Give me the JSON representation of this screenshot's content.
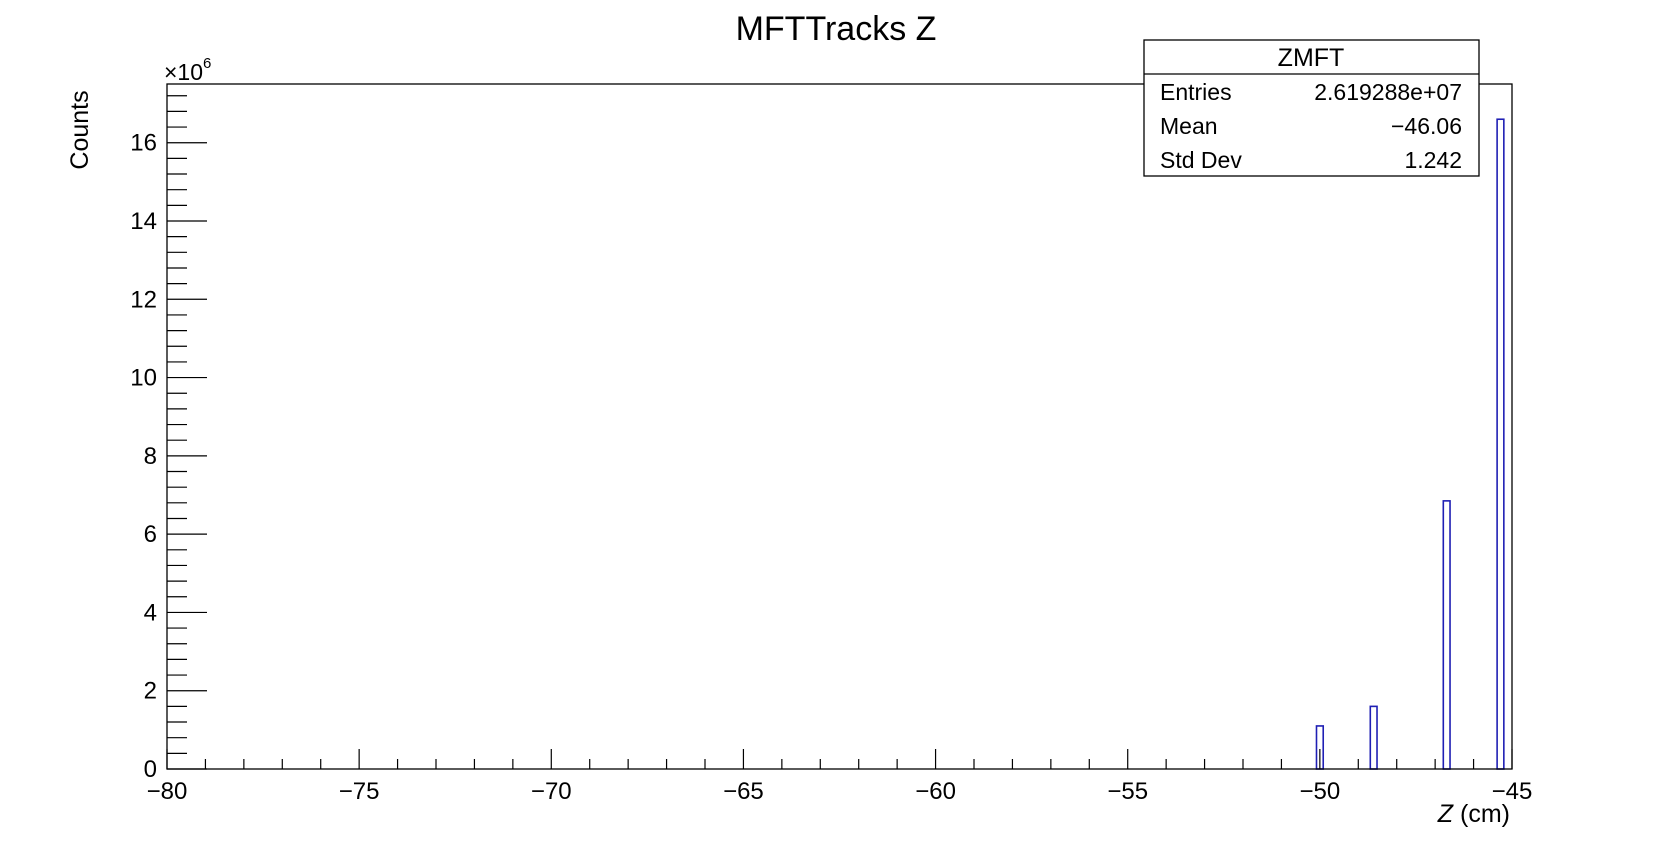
{
  "chart_data": {
    "type": "bar",
    "title": "MFTTracks Z",
    "xlabel_italic": "Z",
    "xlabel_unit": " (cm)",
    "ylabel": "Counts",
    "y_multiplier": "×10",
    "y_multiplier_exp": "6",
    "xlim": [
      -80,
      -45
    ],
    "ylim": [
      0,
      17.5
    ],
    "x_ticks": [
      -80,
      -75,
      -70,
      -65,
      -60,
      -55,
      -50,
      -45
    ],
    "y_ticks": [
      0,
      2,
      4,
      6,
      8,
      10,
      12,
      14,
      16
    ],
    "bin_width": 0.175,
    "series": [
      {
        "x": [
          -50.0,
          -48.6,
          -46.7,
          -45.3
        ],
        "values": [
          1.1,
          1.6,
          6.85,
          16.6
        ]
      }
    ],
    "colors": {
      "bar": "#1f1fb4",
      "axis": "#000000"
    },
    "grid": false
  },
  "stats_box": {
    "title": "ZMFT",
    "rows": [
      {
        "label": "Entries",
        "value": "2.619288e+07"
      },
      {
        "label": "Mean",
        "value": "−46.06"
      },
      {
        "label": "Std Dev",
        "value": "1.242"
      }
    ]
  }
}
